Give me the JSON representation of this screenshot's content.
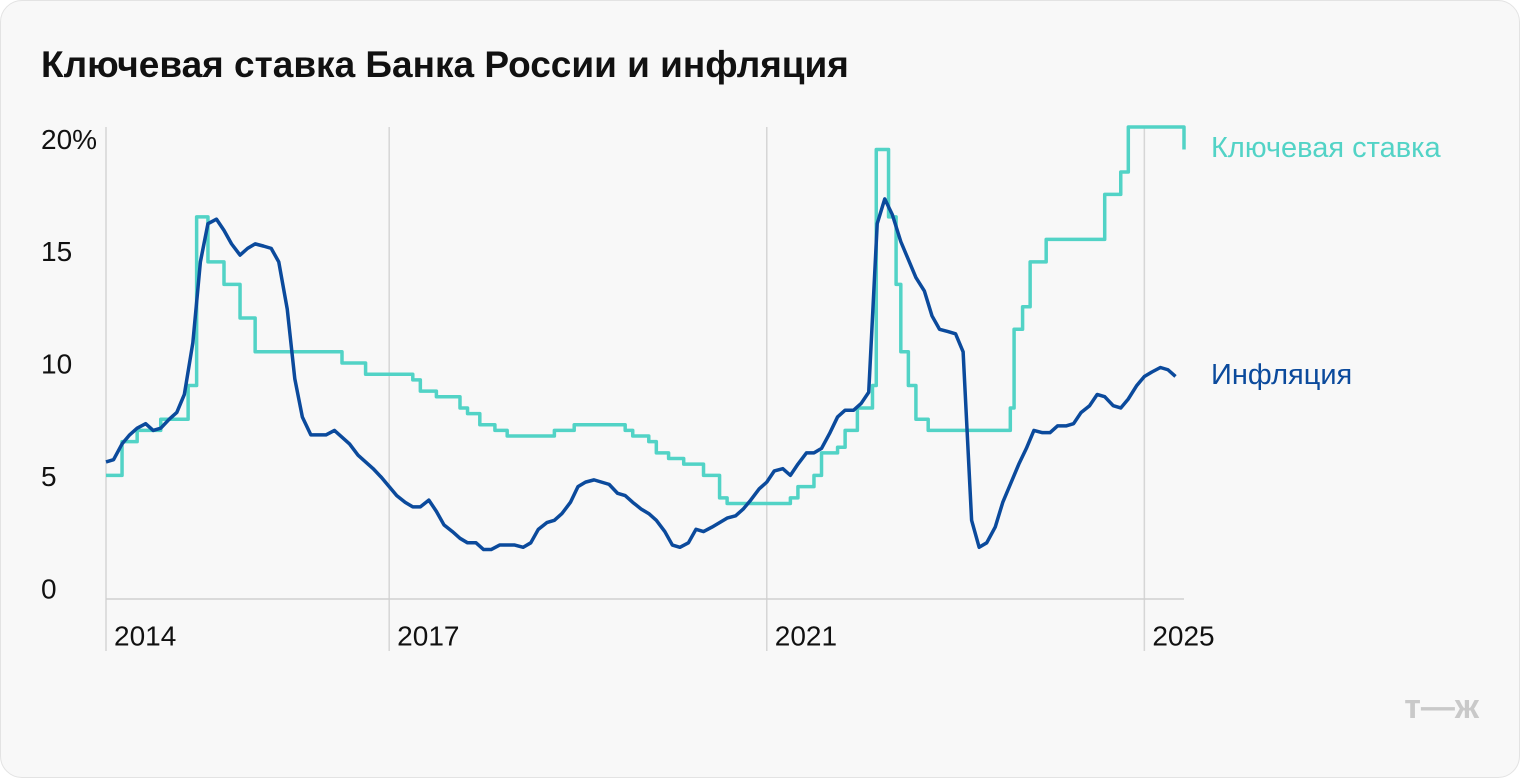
{
  "chart_data": {
    "type": "line",
    "title": "Ключевая ставка Банка России и инфляция",
    "logo": "т—ж",
    "xlim": [
      2014,
      2025.42
    ],
    "xticks": [
      2014,
      2017,
      2021,
      2025
    ],
    "ylim": [
      0,
      21
    ],
    "yticks": [
      0,
      5,
      10,
      15,
      {
        "value": 20,
        "label": "20%"
      }
    ],
    "grid": "x",
    "series": [
      {
        "name": "Ключевая ставка",
        "color": "#52d3c6",
        "drawstyle": "steps-post",
        "x": [
          2014.0,
          2014.17,
          2014.33,
          2014.58,
          2014.87,
          2014.96,
          2015.08,
          2015.25,
          2015.42,
          2015.58,
          2016.5,
          2016.75,
          2017.25,
          2017.33,
          2017.5,
          2017.75,
          2017.83,
          2017.96,
          2018.12,
          2018.25,
          2018.75,
          2018.96,
          2019.5,
          2019.58,
          2019.75,
          2019.83,
          2019.96,
          2020.12,
          2020.33,
          2020.5,
          2020.58,
          2021.25,
          2021.33,
          2021.5,
          2021.58,
          2021.75,
          2021.83,
          2021.96,
          2022.12,
          2022.16,
          2022.29,
          2022.37,
          2022.42,
          2022.5,
          2022.58,
          2022.71,
          2023.58,
          2023.62,
          2023.71,
          2023.79,
          2023.96,
          2024.58,
          2024.75,
          2024.83,
          2025.33,
          2025.42
        ],
        "values": [
          5.5,
          7,
          7.5,
          8,
          9.5,
          17,
          15,
          14,
          12.5,
          11,
          10.5,
          10,
          9.75,
          9.25,
          9,
          8.5,
          8.25,
          7.75,
          7.5,
          7.25,
          7.5,
          7.75,
          7.5,
          7.25,
          7,
          6.5,
          6.25,
          6,
          5.5,
          4.5,
          4.25,
          4.5,
          5,
          5.5,
          6.5,
          6.75,
          7.5,
          8.5,
          9.5,
          20,
          17,
          14,
          11,
          9.5,
          8,
          7.5,
          8.5,
          12,
          13,
          15,
          16,
          18,
          19,
          21,
          21,
          20
        ]
      },
      {
        "name": "Инфляция",
        "color": "#0b4a9c",
        "x": [
          2014.0,
          2014.08,
          2014.17,
          2014.25,
          2014.33,
          2014.42,
          2014.5,
          2014.58,
          2014.67,
          2014.75,
          2014.83,
          2014.92,
          2015.0,
          2015.08,
          2015.17,
          2015.25,
          2015.33,
          2015.42,
          2015.5,
          2015.58,
          2015.67,
          2015.75,
          2015.83,
          2015.92,
          2016.0,
          2016.08,
          2016.17,
          2016.25,
          2016.33,
          2016.42,
          2016.5,
          2016.58,
          2016.67,
          2016.75,
          2016.83,
          2016.92,
          2017.0,
          2017.08,
          2017.17,
          2017.25,
          2017.33,
          2017.42,
          2017.5,
          2017.58,
          2017.67,
          2017.75,
          2017.83,
          2017.92,
          2018.0,
          2018.08,
          2018.17,
          2018.25,
          2018.33,
          2018.42,
          2018.5,
          2018.58,
          2018.67,
          2018.75,
          2018.83,
          2018.92,
          2019.0,
          2019.08,
          2019.17,
          2019.25,
          2019.33,
          2019.42,
          2019.5,
          2019.58,
          2019.67,
          2019.75,
          2019.83,
          2019.92,
          2020.0,
          2020.08,
          2020.17,
          2020.25,
          2020.33,
          2020.42,
          2020.5,
          2020.58,
          2020.67,
          2020.75,
          2020.83,
          2020.92,
          2021.0,
          2021.08,
          2021.17,
          2021.25,
          2021.33,
          2021.42,
          2021.5,
          2021.58,
          2021.67,
          2021.75,
          2021.83,
          2021.92,
          2022.0,
          2022.08,
          2022.17,
          2022.25,
          2022.33,
          2022.42,
          2022.5,
          2022.58,
          2022.67,
          2022.75,
          2022.83,
          2022.92,
          2023.0,
          2023.08,
          2023.17,
          2023.25,
          2023.33,
          2023.42,
          2023.5,
          2023.58,
          2023.67,
          2023.75,
          2023.83,
          2023.92,
          2024.0,
          2024.08,
          2024.17,
          2024.25,
          2024.33,
          2024.42,
          2024.5,
          2024.58,
          2024.67,
          2024.75,
          2024.83,
          2024.92,
          2025.0,
          2025.08,
          2025.17,
          2025.25,
          2025.33
        ],
        "values": [
          6.1,
          6.2,
          6.9,
          7.3,
          7.6,
          7.8,
          7.5,
          7.6,
          8.0,
          8.3,
          9.1,
          11.4,
          15.0,
          16.7,
          16.9,
          16.4,
          15.8,
          15.3,
          15.6,
          15.8,
          15.7,
          15.6,
          15.0,
          12.9,
          9.8,
          8.1,
          7.3,
          7.3,
          7.3,
          7.5,
          7.2,
          6.9,
          6.4,
          6.1,
          5.8,
          5.4,
          5.0,
          4.6,
          4.3,
          4.1,
          4.1,
          4.4,
          3.9,
          3.3,
          3.0,
          2.7,
          2.5,
          2.5,
          2.2,
          2.2,
          2.4,
          2.4,
          2.4,
          2.3,
          2.5,
          3.1,
          3.4,
          3.5,
          3.8,
          4.3,
          5.0,
          5.2,
          5.3,
          5.2,
          5.1,
          4.7,
          4.6,
          4.3,
          4.0,
          3.8,
          3.5,
          3.0,
          2.4,
          2.3,
          2.5,
          3.1,
          3.0,
          3.2,
          3.4,
          3.6,
          3.7,
          4.0,
          4.4,
          4.9,
          5.2,
          5.7,
          5.8,
          5.5,
          6.0,
          6.5,
          6.5,
          6.7,
          7.4,
          8.1,
          8.4,
          8.4,
          8.7,
          9.2,
          16.7,
          17.8,
          17.1,
          15.9,
          15.1,
          14.3,
          13.7,
          12.6,
          12.0,
          11.9,
          11.8,
          11.0,
          3.5,
          2.3,
          2.5,
          3.2,
          4.3,
          5.1,
          6.0,
          6.7,
          7.5,
          7.4,
          7.4,
          7.7,
          7.7,
          7.8,
          8.3,
          8.6,
          9.1,
          9.0,
          8.6,
          8.5,
          8.9,
          9.5,
          9.9,
          10.1,
          10.3,
          10.2,
          9.9
        ]
      }
    ]
  }
}
